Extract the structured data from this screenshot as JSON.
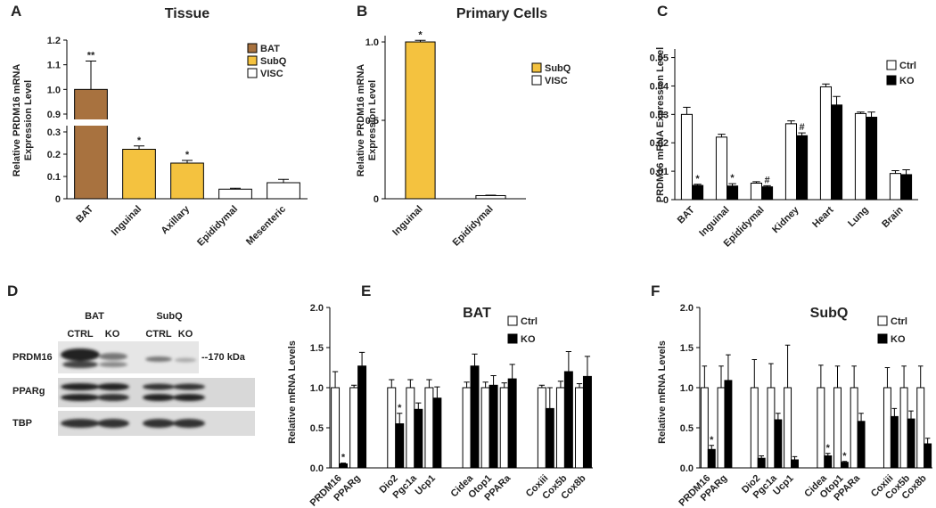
{
  "chart_data": [
    {
      "type": "bar",
      "panel": "A",
      "title": "Tissue",
      "ylabel": [
        "Relative PRDM16 mRNA",
        "Expression Level"
      ],
      "categories": [
        "BAT",
        "Inguinal",
        "Axillary",
        "Epididymal",
        "Mesenteric"
      ],
      "series": [
        {
          "name": "BAT",
          "color": "#a8723f",
          "values": [
            1.0,
            null,
            null,
            null,
            null
          ],
          "errors": [
            0.115,
            null,
            null,
            null,
            null
          ],
          "annotations": [
            "**",
            null,
            null,
            null,
            null
          ]
        },
        {
          "name": "SubQ",
          "color": "#f4c23f",
          "values": [
            null,
            0.222,
            0.16,
            null,
            null
          ],
          "errors": [
            null,
            0.015,
            0.012,
            null,
            null
          ],
          "annotations": [
            null,
            "*",
            "*",
            null,
            null
          ]
        },
        {
          "name": "VISC",
          "color": "#ffffff",
          "values": [
            null,
            null,
            null,
            0.043,
            0.072
          ],
          "errors": [
            null,
            null,
            null,
            0.004,
            0.015
          ],
          "annotations": [
            null,
            null,
            null,
            null,
            null
          ]
        }
      ],
      "ylim": [
        0,
        1.2
      ],
      "y_break": [
        0.3,
        0.9
      ],
      "yticks": [
        0,
        0.1,
        0.2,
        0.3,
        0.9,
        {
          "value": 1,
          "label": "1.0"
        },
        1.1,
        1.2
      ],
      "legend": "upper right"
    },
    {
      "type": "bar",
      "panel": "B",
      "title": "Primary Cells",
      "ylabel": [
        "Relative PRDM16 mRNA",
        "Expression Level"
      ],
      "categories": [
        "Inguinal",
        "Epididymal"
      ],
      "series": [
        {
          "name": "SubQ",
          "color": "#f4c23f",
          "values": [
            1.0,
            null
          ],
          "errors": [
            0.01,
            null
          ],
          "annotations": [
            "*",
            null
          ]
        },
        {
          "name": "VISC",
          "color": "#ffffff",
          "values": [
            null,
            0.02
          ],
          "errors": [
            null,
            0.003
          ],
          "annotations": [
            null,
            null
          ]
        }
      ],
      "ylim": [
        0,
        1.04
      ],
      "yticks": [
        0,
        0.5,
        {
          "value": 1,
          "label": "1.0"
        }
      ],
      "legend": "upper right"
    },
    {
      "type": "bar",
      "panel": "C",
      "ylabel": [
        "PRDM16 mRNA Expression Level"
      ],
      "categories": [
        "BAT",
        "Inguinal",
        "Epididymal",
        "Kidney",
        "Heart",
        "Lung",
        "Brain"
      ],
      "series": [
        {
          "name": "Ctrl",
          "color": "#ffffff",
          "values": [
            0.03,
            0.022,
            0.0058,
            0.0267,
            0.0397,
            0.0303,
            0.0092
          ],
          "errors": [
            0.0025,
            0.001,
            0.0005,
            0.001,
            0.001,
            0.0005,
            0.001
          ],
          "annotations": [
            null,
            null,
            null,
            null,
            null,
            null,
            null
          ]
        },
        {
          "name": "KO",
          "color": "#000000",
          "values": [
            0.005,
            0.0048,
            0.0045,
            0.0225,
            0.0333,
            0.029,
            0.0088
          ],
          "errors": [
            0.0004,
            0.0008,
            0.0004,
            0.001,
            0.003,
            0.0018,
            0.0017
          ],
          "annotations": [
            "*",
            "*",
            "#",
            "#",
            null,
            null,
            null
          ]
        }
      ],
      "ylim": [
        0,
        0.053
      ],
      "yticks": [
        0,
        0.01,
        0.02,
        0.03,
        0.04,
        0.05
      ],
      "legend": "upper right"
    },
    {
      "type": "bar",
      "panel": "E",
      "title": "BAT",
      "ylabel": [
        "Relative mRNA Levels"
      ],
      "categories": [
        "PRDM16",
        "PPARg",
        null,
        "Dio2",
        "Pgc1a",
        "Ucp1",
        null,
        "Cidea",
        "Otop1",
        "PPARa",
        null,
        "Coxiii",
        "Cox5b",
        "Cox8b"
      ],
      "series": [
        {
          "name": "Ctrl",
          "color": "#ffffff",
          "values": [
            1,
            1,
            null,
            1,
            1,
            1,
            null,
            1,
            1,
            1,
            null,
            1,
            1,
            1
          ],
          "errors": [
            0.2,
            0.03,
            null,
            0.1,
            0.1,
            0.1,
            null,
            0.07,
            0.07,
            0.06,
            null,
            0.03,
            0.08,
            0.05
          ],
          "annotations": [
            null,
            null,
            null,
            null,
            null,
            null,
            null,
            null,
            null,
            null,
            null,
            null,
            null,
            null
          ]
        },
        {
          "name": "KO",
          "color": "#000000",
          "values": [
            0.05,
            1.27,
            null,
            0.55,
            0.73,
            0.87,
            null,
            1.27,
            1.03,
            1.11,
            null,
            0.74,
            1.2,
            1.14
          ],
          "errors": [
            0.01,
            0.17,
            null,
            0.13,
            0.08,
            0.14,
            null,
            0.15,
            0.12,
            0.18,
            null,
            0.26,
            0.25,
            0.25
          ],
          "annotations": [
            "*",
            null,
            null,
            "*",
            null,
            null,
            null,
            null,
            null,
            null,
            null,
            null,
            null,
            null
          ]
        }
      ],
      "ylim": [
        0,
        2
      ],
      "yticks": [
        {
          "value": 0,
          "label": "0.0"
        },
        0.5,
        {
          "value": 1,
          "label": "1.0"
        },
        1.5,
        {
          "value": 2,
          "label": "2.0"
        }
      ],
      "legend": "upper right"
    },
    {
      "type": "bar",
      "panel": "F",
      "title": "SubQ",
      "ylabel": [
        "Relative mRNA Levels"
      ],
      "categories": [
        "PRDM16",
        "PPARg",
        null,
        "Dio2",
        "Pgc1a",
        "Ucp1",
        null,
        "Cidea",
        "Otop1",
        "PPARa",
        null,
        "Coxiii",
        "Cox5b",
        "Cox8b"
      ],
      "series": [
        {
          "name": "Ctrl",
          "color": "#ffffff",
          "values": [
            1,
            1,
            null,
            1,
            1,
            1,
            null,
            1,
            1,
            1,
            null,
            1,
            1,
            1
          ],
          "errors": [
            0.27,
            0.27,
            null,
            0.35,
            0.3,
            0.53,
            null,
            0.28,
            0.27,
            0.27,
            null,
            0.25,
            0.27,
            0.27
          ],
          "annotations": [
            null,
            null,
            null,
            null,
            null,
            null,
            null,
            null,
            null,
            null,
            null,
            null,
            null,
            null
          ]
        },
        {
          "name": "KO",
          "color": "#000000",
          "values": [
            0.23,
            1.09,
            null,
            0.12,
            0.6,
            0.1,
            null,
            0.15,
            0.07,
            0.58,
            null,
            0.64,
            0.61,
            0.3
          ],
          "errors": [
            0.05,
            0.32,
            null,
            0.03,
            0.08,
            0.04,
            null,
            0.03,
            0.01,
            0.1,
            null,
            0.1,
            0.1,
            0.07
          ],
          "annotations": [
            "*",
            null,
            null,
            null,
            null,
            null,
            null,
            "*",
            "*",
            null,
            null,
            null,
            null,
            null
          ]
        }
      ],
      "ylim": [
        0,
        2
      ],
      "yticks": [
        {
          "value": 0,
          "label": "0.0"
        },
        0.5,
        {
          "value": 1,
          "label": "1.0"
        },
        1.5,
        {
          "value": 2,
          "label": "2.0"
        }
      ],
      "legend": "upper right"
    }
  ],
  "blot": {
    "panel": "D",
    "groups": [
      "BAT",
      "SubQ"
    ],
    "lanes": [
      "CTRL",
      "KO",
      "CTRL",
      "KO"
    ],
    "rows": [
      "PRDM16",
      "PPARg",
      "TBP"
    ],
    "marker": "--170 kDa"
  }
}
